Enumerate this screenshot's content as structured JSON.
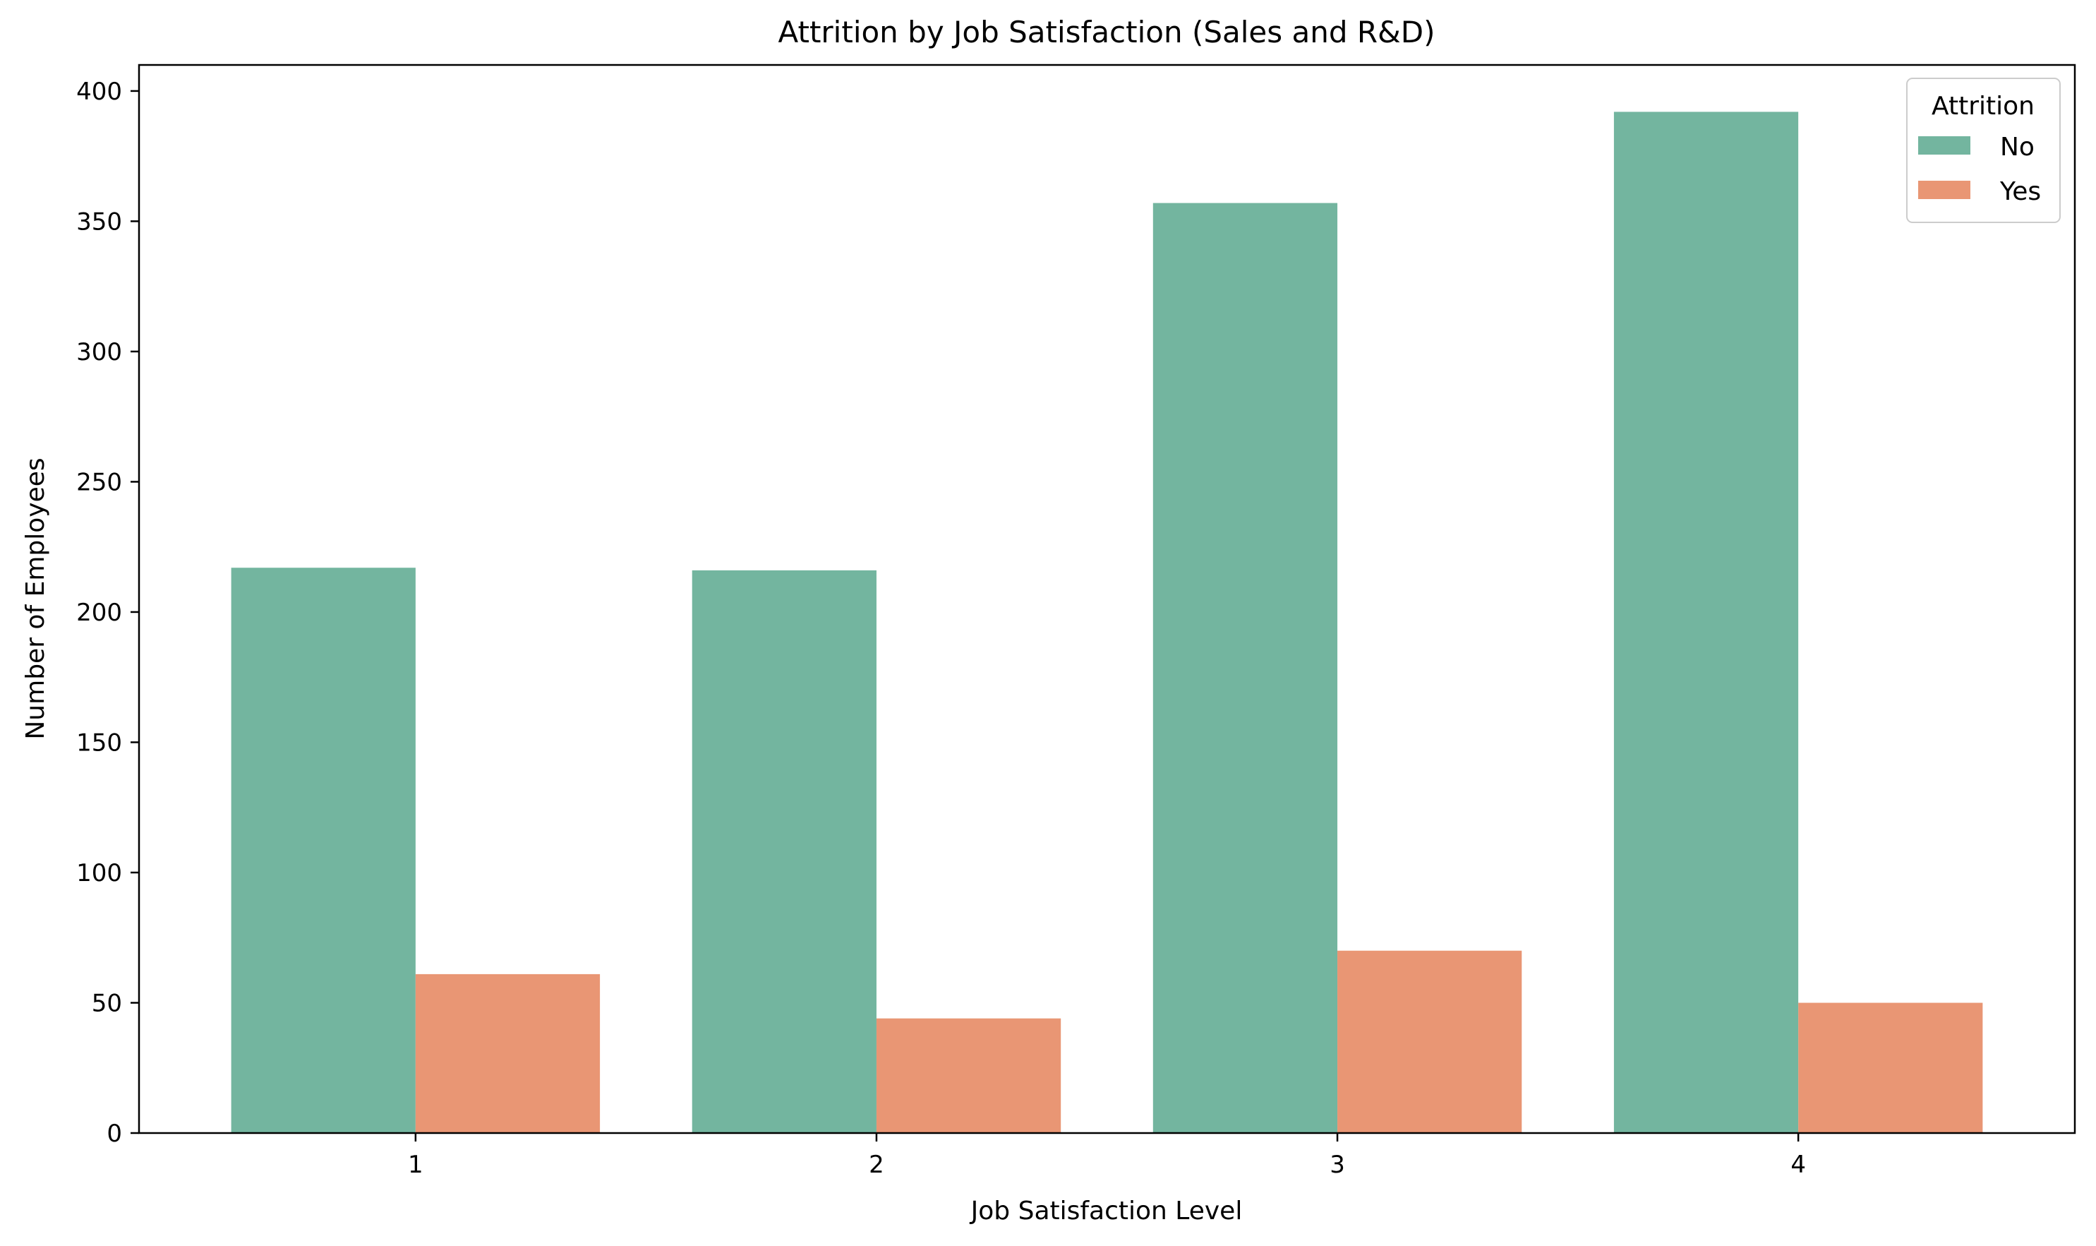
{
  "chart_data": {
    "type": "bar",
    "title": "Attrition by Job Satisfaction (Sales and R&D)",
    "xlabel": "Job Satisfaction Level",
    "ylabel": "Number of Employees",
    "categories": [
      "1",
      "2",
      "3",
      "4"
    ],
    "series": [
      {
        "name": "No",
        "color": "#73b59f",
        "values": [
          217,
          216,
          357,
          392
        ]
      },
      {
        "name": "Yes",
        "color": "#e99674",
        "values": [
          61,
          44,
          70,
          50
        ]
      }
    ],
    "ylim": [
      0,
      410
    ],
    "yticks": [
      0,
      50,
      100,
      150,
      200,
      250,
      300,
      350,
      400
    ],
    "grid": false,
    "legend": {
      "title": "Attrition",
      "placement": "top-right"
    }
  }
}
